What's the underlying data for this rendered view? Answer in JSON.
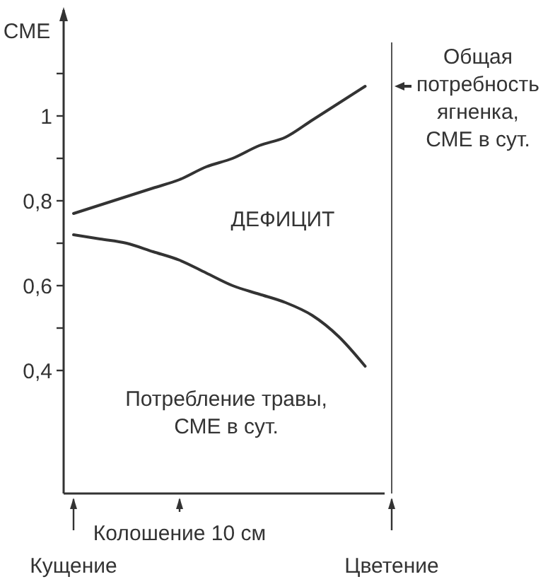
{
  "chart_data": {
    "type": "line",
    "ylabel": "СМЕ",
    "categories": [
      "Кущение",
      null,
      null,
      null,
      "Колошение 10 см",
      null,
      null,
      null,
      null,
      null,
      null,
      null,
      "Цветение"
    ],
    "ylim": [
      0.11,
      1.25
    ],
    "yticks": [
      {
        "value": 0.4,
        "label": "0,4"
      },
      {
        "value": 0.5,
        "label": null
      },
      {
        "value": 0.6,
        "label": "0,6"
      },
      {
        "value": 0.7,
        "label": null
      },
      {
        "value": 0.8,
        "label": "0,8"
      },
      {
        "value": 0.9,
        "label": null
      },
      1,
      {
        "value": 1.1,
        "label": null
      }
    ],
    "series": [
      {
        "color": "#333333",
        "values": [
          0.77,
          0.79,
          0.81,
          0.83,
          0.85,
          0.88,
          0.9,
          0.93,
          0.95,
          0.99,
          1.03,
          1.07,
          null
        ]
      },
      {
        "color": "#333333",
        "values": [
          0.72,
          0.71,
          0.7,
          0.68,
          0.66,
          0.63,
          0.6,
          0.58,
          0.56,
          0.53,
          0.48,
          0.41,
          null
        ]
      }
    ],
    "ref_lines": [
      {
        "axis": "x",
        "value": "Цветение",
        "color": "#555555"
      }
    ],
    "annotations": [
      "Общая\nпотребность\nягненка,\nСМЕ в сут.",
      "ДЕФИЦИТ",
      "Потребление травы,\nСМЕ в сут."
    ],
    "grid": false,
    "marker": "none",
    "line_style": "solid"
  }
}
